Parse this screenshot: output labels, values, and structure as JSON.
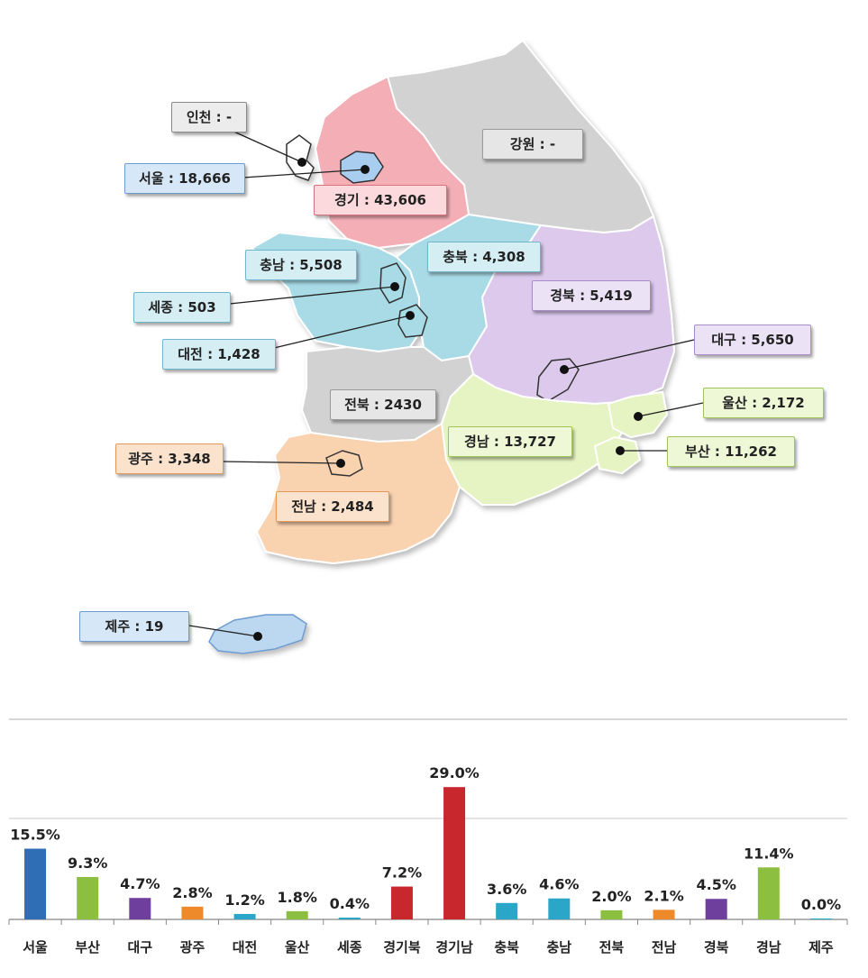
{
  "map": {
    "regions": [
      {
        "key": "incheon",
        "name": "인천",
        "value": "-",
        "color": "#ffffff",
        "label_bg": "#ececec",
        "label_border": "#8a8a8a"
      },
      {
        "key": "seoul",
        "name": "서울",
        "value": "18,666",
        "color": "#a9cdee",
        "label_bg": "#d6e7f7",
        "label_border": "#6f9bd0"
      },
      {
        "key": "gyeonggi",
        "name": "경기",
        "value": "43,606",
        "color": "#f4aeb6",
        "label_bg": "#fbd9dd",
        "label_border": "#d9707c"
      },
      {
        "key": "gangwon",
        "name": "강원",
        "value": "-",
        "color": "#d2d2d2",
        "label_bg": "#e6e6e6",
        "label_border": "#9a9a9a"
      },
      {
        "key": "chungnam",
        "name": "충남",
        "value": "5,508",
        "color": "#a8dbe6",
        "label_bg": "#d4eef4",
        "label_border": "#6fb8cb"
      },
      {
        "key": "chungbuk",
        "name": "충북",
        "value": "4,308",
        "color": "#a8dbe6",
        "label_bg": "#d4eef4",
        "label_border": "#6fb8cb"
      },
      {
        "key": "sejong",
        "name": "세종",
        "value": "503",
        "color": "#a8dbe6",
        "label_bg": "#d4eef4",
        "label_border": "#6fb8cb"
      },
      {
        "key": "daejeon",
        "name": "대전",
        "value": "1,428",
        "color": "#a8dbe6",
        "label_bg": "#d4eef4",
        "label_border": "#6fb8cb"
      },
      {
        "key": "gyeongbuk",
        "name": "경북",
        "value": "5,419",
        "color": "#dcc9ec",
        "label_bg": "#ece2f6",
        "label_border": "#a98cc9"
      },
      {
        "key": "daegu",
        "name": "대구",
        "value": "5,650",
        "color": "#dcc9ec",
        "label_bg": "#ece2f6",
        "label_border": "#a98cc9"
      },
      {
        "key": "jeonbuk",
        "name": "전북",
        "value": "2430",
        "color": "#d2d2d2",
        "label_bg": "#e6e6e6",
        "label_border": "#9a9a9a"
      },
      {
        "key": "ulsan",
        "name": "울산",
        "value": "2,172",
        "color": "#e6f3c2",
        "label_bg": "#eef7d6",
        "label_border": "#9ec45a"
      },
      {
        "key": "gyeongnam",
        "name": "경남",
        "value": "13,727",
        "color": "#e6f3c2",
        "label_bg": "#eef7d6",
        "label_border": "#9ec45a"
      },
      {
        "key": "busan",
        "name": "부산",
        "value": "11,262",
        "color": "#e6f3c2",
        "label_bg": "#eef7d6",
        "label_border": "#9ec45a"
      },
      {
        "key": "gwangju",
        "name": "광주",
        "value": "3,348",
        "color": "#f9d2b0",
        "label_bg": "#fbe2cc",
        "label_border": "#e19a5a"
      },
      {
        "key": "jeonnam",
        "name": "전남",
        "value": "2,484",
        "color": "#f9d2b0",
        "label_bg": "#fbe2cc",
        "label_border": "#e19a5a"
      },
      {
        "key": "jeju",
        "name": "제주",
        "value": "19",
        "color": "#bcd8f1",
        "label_bg": "#d6e7f7",
        "label_border": "#6f9bd0"
      }
    ]
  },
  "chart_data": {
    "type": "bar",
    "categories": [
      "서울",
      "부산",
      "대구",
      "광주",
      "대전",
      "울산",
      "세종",
      "경기북",
      "경기남",
      "충북",
      "충남",
      "전북",
      "전남",
      "경북",
      "경남",
      "제주"
    ],
    "values": [
      15.5,
      9.3,
      4.7,
      2.8,
      1.2,
      1.8,
      0.4,
      7.2,
      29.0,
      3.6,
      4.6,
      2.0,
      2.1,
      4.5,
      11.4,
      0.0
    ],
    "value_labels": [
      "15.5%",
      "9.3%",
      "4.7%",
      "2.8%",
      "1.2%",
      "1.8%",
      "0.4%",
      "7.2%",
      "29.0%",
      "3.6%",
      "4.6%",
      "2.0%",
      "2.1%",
      "4.5%",
      "11.4%",
      "0.0%"
    ],
    "colors": [
      "#2f6db5",
      "#8cbf3f",
      "#6f3f9d",
      "#ef8a2a",
      "#2aa6c9",
      "#8cbf3f",
      "#2aa6c9",
      "#c8282d",
      "#c8282d",
      "#2aa6c9",
      "#2aa6c9",
      "#8cbf3f",
      "#ef8a2a",
      "#6f3f9d",
      "#8cbf3f",
      "#2aa6c9"
    ],
    "ylim": [
      0,
      32
    ],
    "grid": true,
    "title": "",
    "xlabel": "",
    "ylabel": ""
  }
}
